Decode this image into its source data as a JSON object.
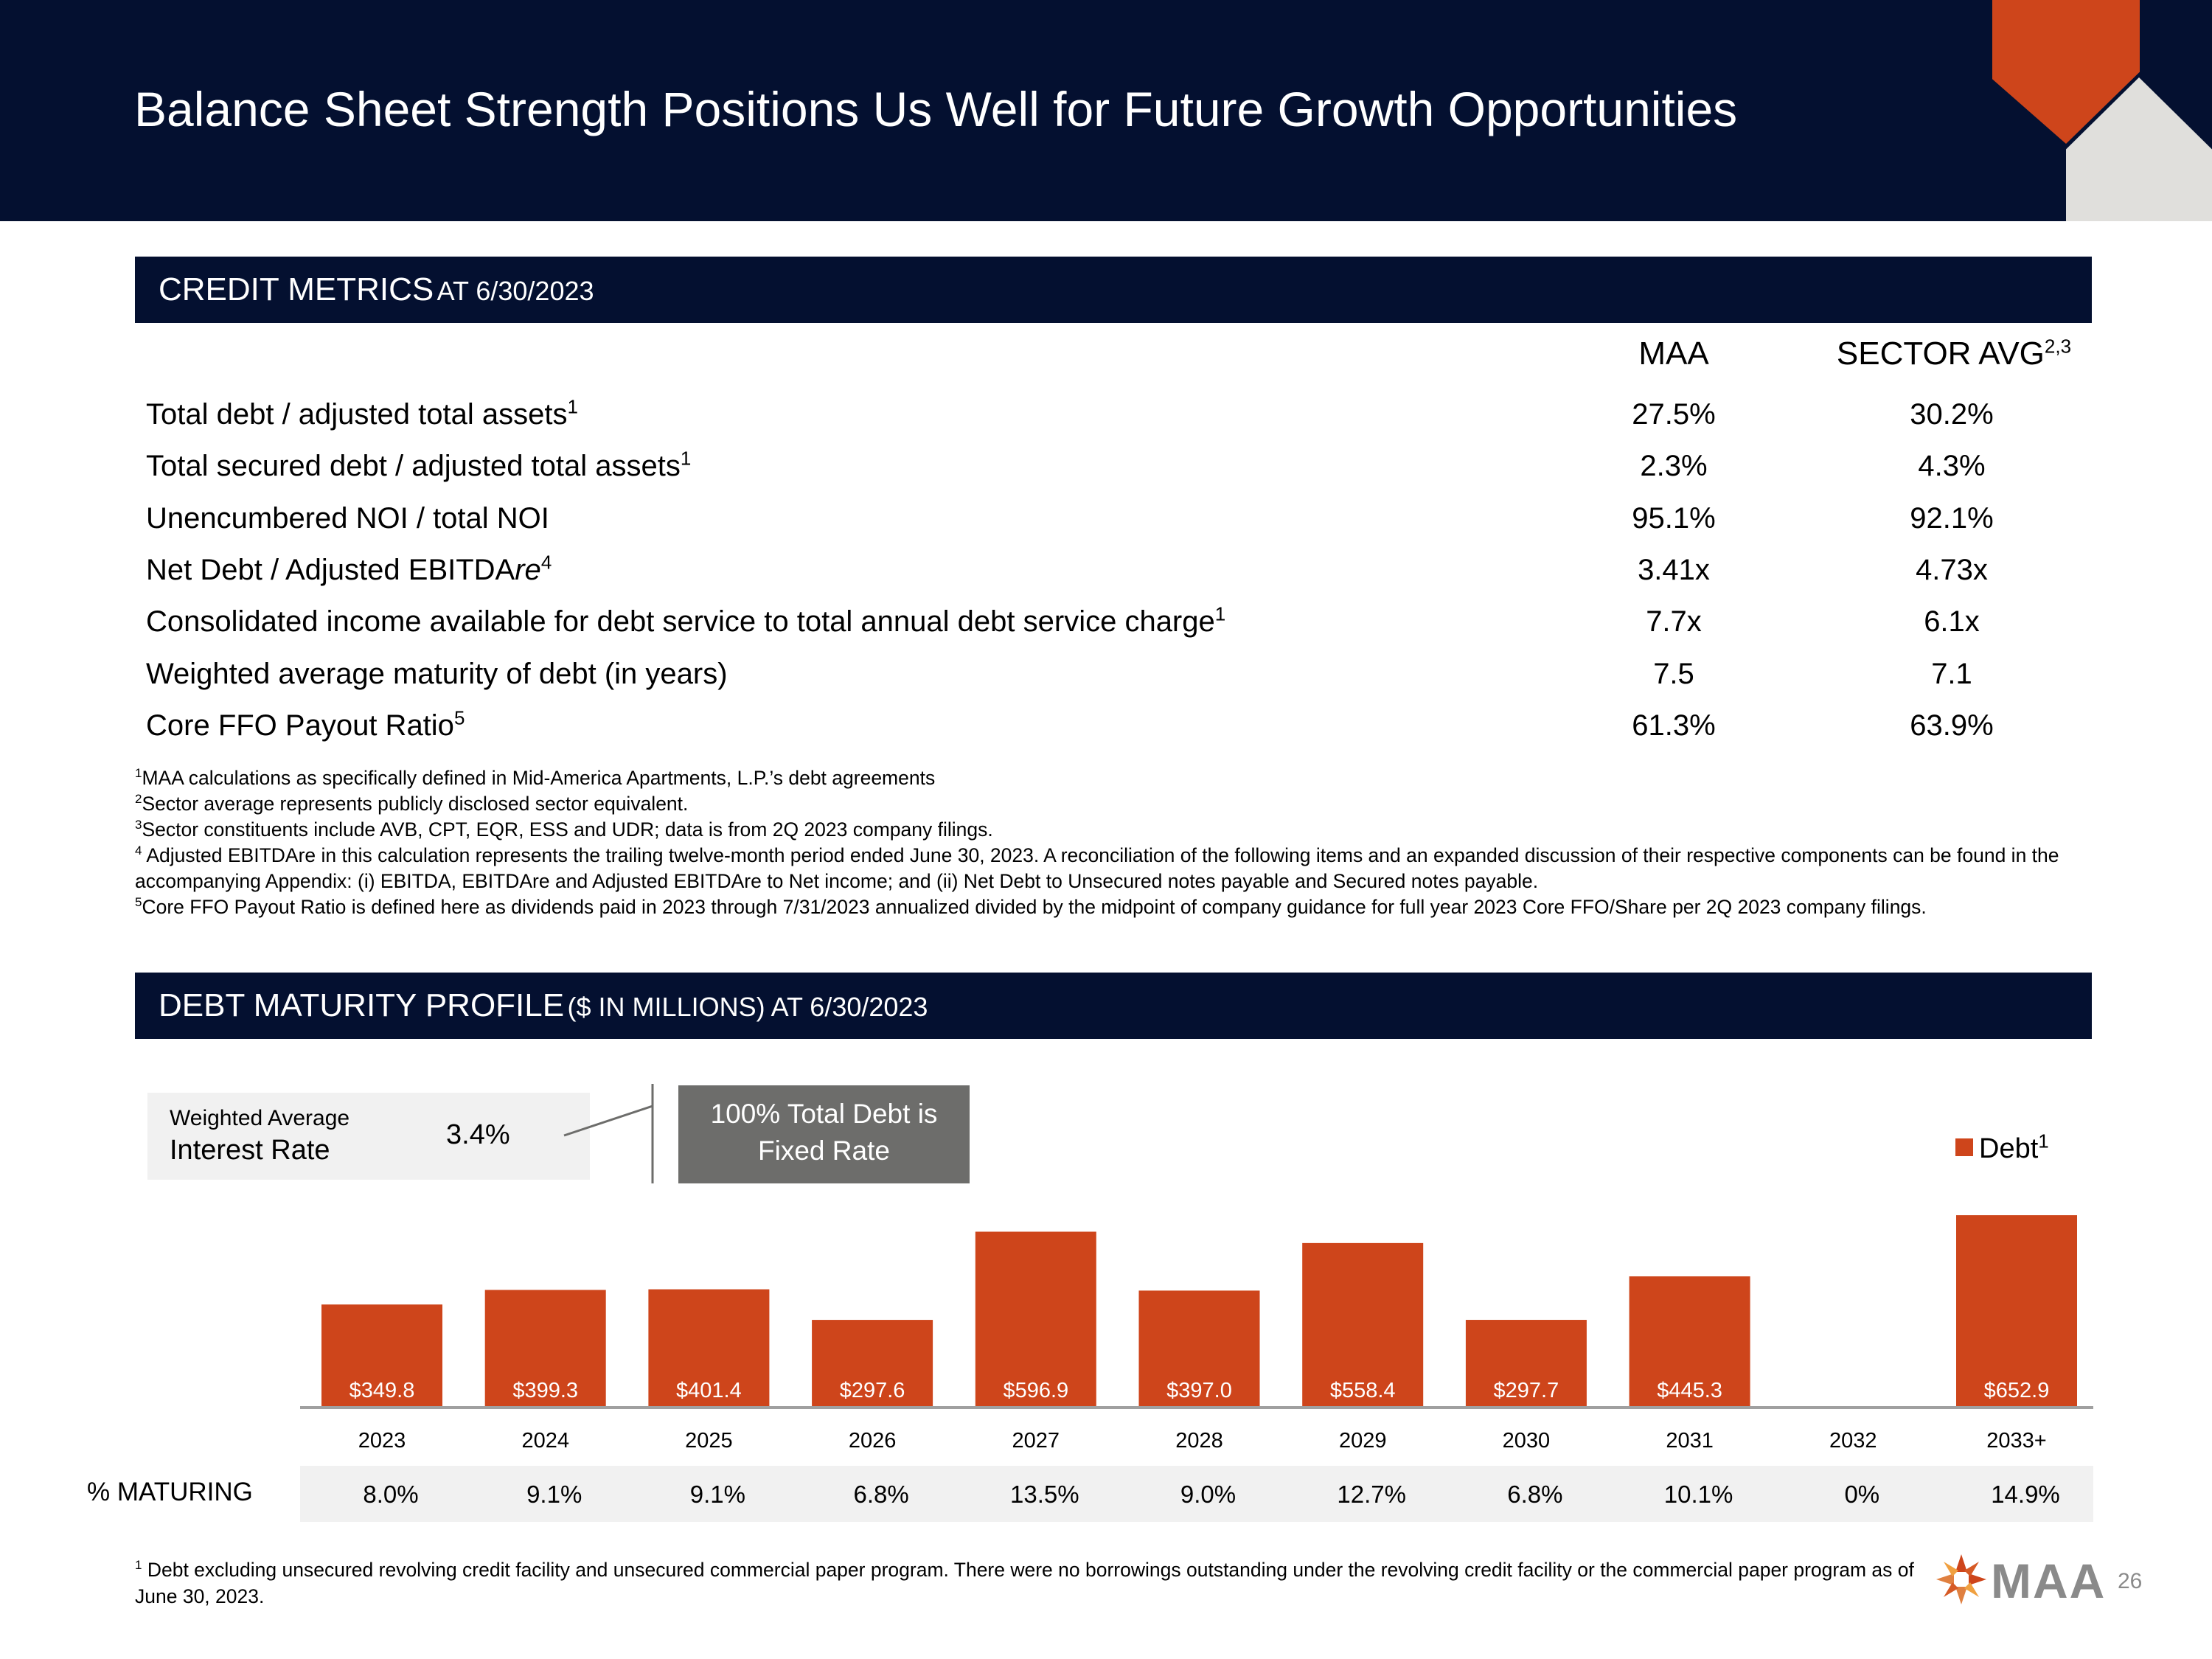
{
  "header": {
    "title": "Balance Sheet Strength Positions Us Well for Future Growth Opportunities"
  },
  "credit_section": {
    "title_big": "CREDIT METRICS",
    "title_small": "AT 6/30/2023",
    "col_maa": "MAA",
    "col_sector": "SECTOR AVG",
    "col_sector_sup": "2,3",
    "rows": [
      {
        "label": "Total debt / adjusted total assets",
        "sup": "1",
        "maa": "27.5%",
        "sector": "30.2%"
      },
      {
        "label": "Total secured debt / adjusted total assets",
        "sup": "1",
        "maa": "2.3%",
        "sector": "4.3%"
      },
      {
        "label": "Unencumbered NOI / total NOI",
        "sup": "",
        "maa": "95.1%",
        "sector": "92.1%"
      },
      {
        "label": "Net Debt / Adjusted EBITDA",
        "label_italic": "re",
        "sup": "4",
        "maa": "3.41x",
        "sector": "4.73x"
      },
      {
        "label": "Consolidated income available for debt service to total annual debt service charge",
        "sup": "1",
        "maa": "7.7x",
        "sector": "6.1x"
      },
      {
        "label": "Weighted average maturity of debt (in years)",
        "sup": "",
        "maa": "7.5",
        "sector": "7.1"
      },
      {
        "label": "Core FFO Payout Ratio",
        "sup": "5",
        "maa": "61.3%",
        "sector": "63.9%"
      }
    ]
  },
  "footnotes": [
    {
      "num": "1",
      "text": "MAA calculations as specifically defined in Mid-America Apartments, L.P.’s debt agreements"
    },
    {
      "num": "2",
      "text": "Sector average represents publicly disclosed sector equivalent."
    },
    {
      "num": "3",
      "text": "Sector constituents include AVB, CPT, EQR, ESS and UDR; data is from 2Q 2023 company filings."
    },
    {
      "num": "4",
      "text": " Adjusted EBITDAre in this calculation represents the trailing twelve-month period ended June 30, 2023. A reconciliation of the following items and an expanded discussion of their respective components can be found in the accompanying Appendix: (i) EBITDA, EBITDAre and Adjusted EBITDAre to Net income; and (ii) Net Debt to Unsecured notes payable and Secured notes payable."
    },
    {
      "num": "5",
      "text": "Core FFO Payout Ratio is defined here as dividends paid in 2023 through 7/31/2023 annualized divided by the midpoint of company guidance for full year 2023 Core FFO/Share per 2Q 2023 company filings."
    }
  ],
  "debt_section": {
    "title_big": "DEBT MATURITY PROFILE",
    "title_small": "($ IN MILLIONS) AT 6/30/2023",
    "war_line1": "Weighted Average",
    "war_line2": "Interest Rate",
    "war_value": "3.4%",
    "fixed_line1": "100% Total Debt is",
    "fixed_line2": "Fixed Rate",
    "pct_header": "% MATURING"
  },
  "chart_data": {
    "type": "bar",
    "categories": [
      "2023",
      "2024",
      "2025",
      "2026",
      "2027",
      "2028",
      "2029",
      "2030",
      "2031",
      "2032",
      "2033+"
    ],
    "series": [
      {
        "name": "Debt",
        "name_sup": "1",
        "color": "#ce451b",
        "values": [
          349.8,
          399.3,
          401.4,
          297.6,
          596.9,
          397.0,
          558.4,
          297.7,
          445.3,
          0,
          652.9
        ]
      }
    ],
    "value_labels": [
      "$349.8",
      "$399.3",
      "$401.4",
      "$297.6",
      "$596.9",
      "$397.0",
      "$558.4",
      "$297.7",
      "$445.3",
      "",
      "$652.9"
    ],
    "pct_maturing": [
      "8.0%",
      "9.1%",
      "9.1%",
      "6.8%",
      "13.5%",
      "9.0%",
      "12.7%",
      "6.8%",
      "10.1%",
      "0%",
      "14.9%"
    ],
    "legend": "top-right"
  },
  "bottom_note": {
    "num": "1",
    "text": "Debt excluding unsecured revolving credit facility and unsecured commercial paper program.  There were no borrowings outstanding under the revolving credit facility or the commercial paper program as of June 30, 2023."
  },
  "logo_text": "MAA",
  "page_number": "26",
  "colors": {
    "navy": "#041030",
    "orange": "#ce451b",
    "gray_box": "#6d6d6b",
    "light_band": "#f1f1f1"
  }
}
